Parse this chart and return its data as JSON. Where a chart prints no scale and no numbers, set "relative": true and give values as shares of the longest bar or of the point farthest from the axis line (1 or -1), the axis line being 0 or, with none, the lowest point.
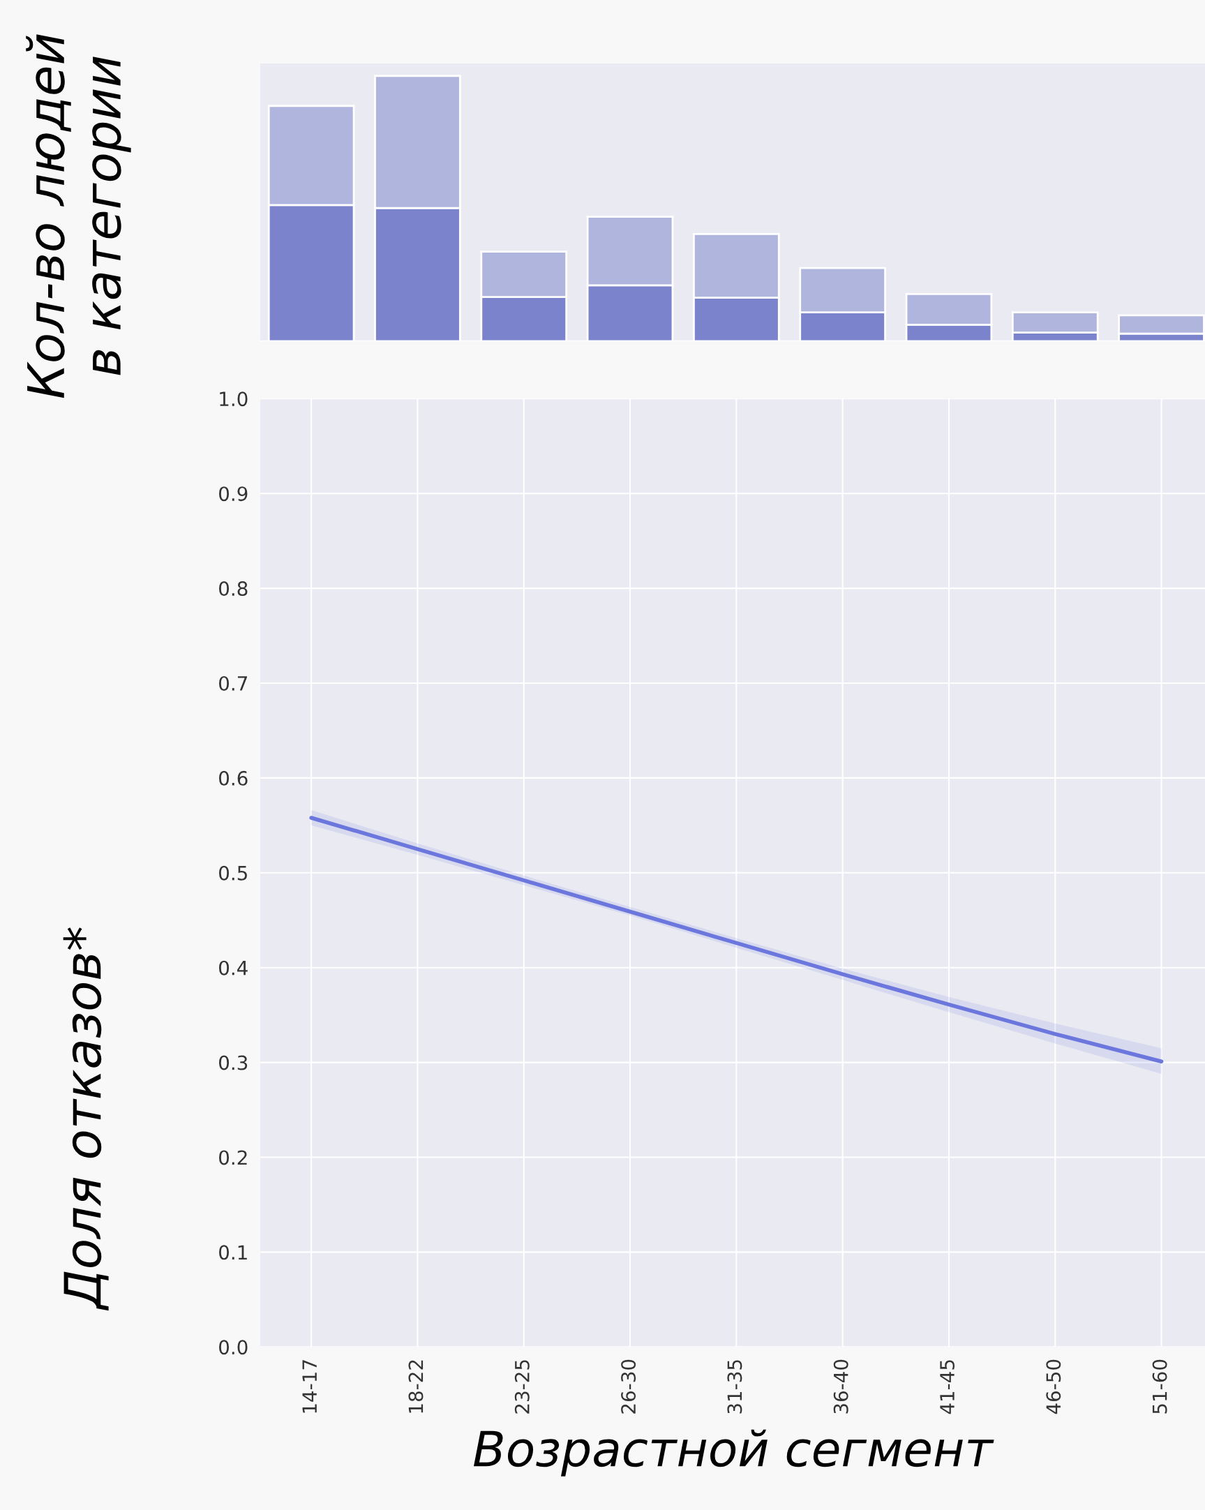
{
  "chart_data": [
    {
      "type": "bar",
      "stacked": true,
      "relative": true,
      "ylabel": "Кол-во людей\nв категории",
      "grid": false,
      "categories": [
        null,
        null,
        null,
        null,
        null,
        null,
        null,
        null,
        null
      ],
      "series": [
        {
          "color": "#7a83cc",
          "values": [
            0.513,
            0.502,
            0.167,
            0.211,
            0.164,
            0.109,
            0.062,
            0.033,
            0.029
          ]
        },
        {
          "color": "#b0b5de",
          "values": [
            0.374,
            0.498,
            0.171,
            0.258,
            0.24,
            0.167,
            0.116,
            0.076,
            0.069
          ]
        }
      ]
    },
    {
      "type": "line",
      "ylabel": "Доля отказов*",
      "xlabel": "Возрастной сегмент",
      "grid": true,
      "categories": [
        "14-17",
        "18-22",
        "23-25",
        "26-30",
        "31-35",
        "36-40",
        "41-45",
        "46-50",
        "51-60"
      ],
      "ylim": [
        0.0,
        1.0
      ],
      "yticks": [
        {
          "value": 0.0,
          "label": "0.0"
        },
        0.1,
        0.2,
        0.3,
        0.4,
        0.5,
        0.6,
        0.7,
        0.8,
        0.9,
        {
          "value": 1.0,
          "label": "1.0"
        }
      ],
      "series": [
        {
          "color": "#6b77dd",
          "values": [
            0.558,
            0.525,
            0.492,
            0.459,
            0.426,
            0.393,
            0.361,
            0.33,
            0.301
          ],
          "lower": [
            0.55,
            0.519,
            0.487,
            0.455,
            0.421,
            0.387,
            0.353,
            0.32,
            0.288
          ],
          "upper": [
            0.566,
            0.531,
            0.497,
            0.464,
            0.431,
            0.399,
            0.369,
            0.341,
            0.315
          ]
        }
      ]
    }
  ]
}
